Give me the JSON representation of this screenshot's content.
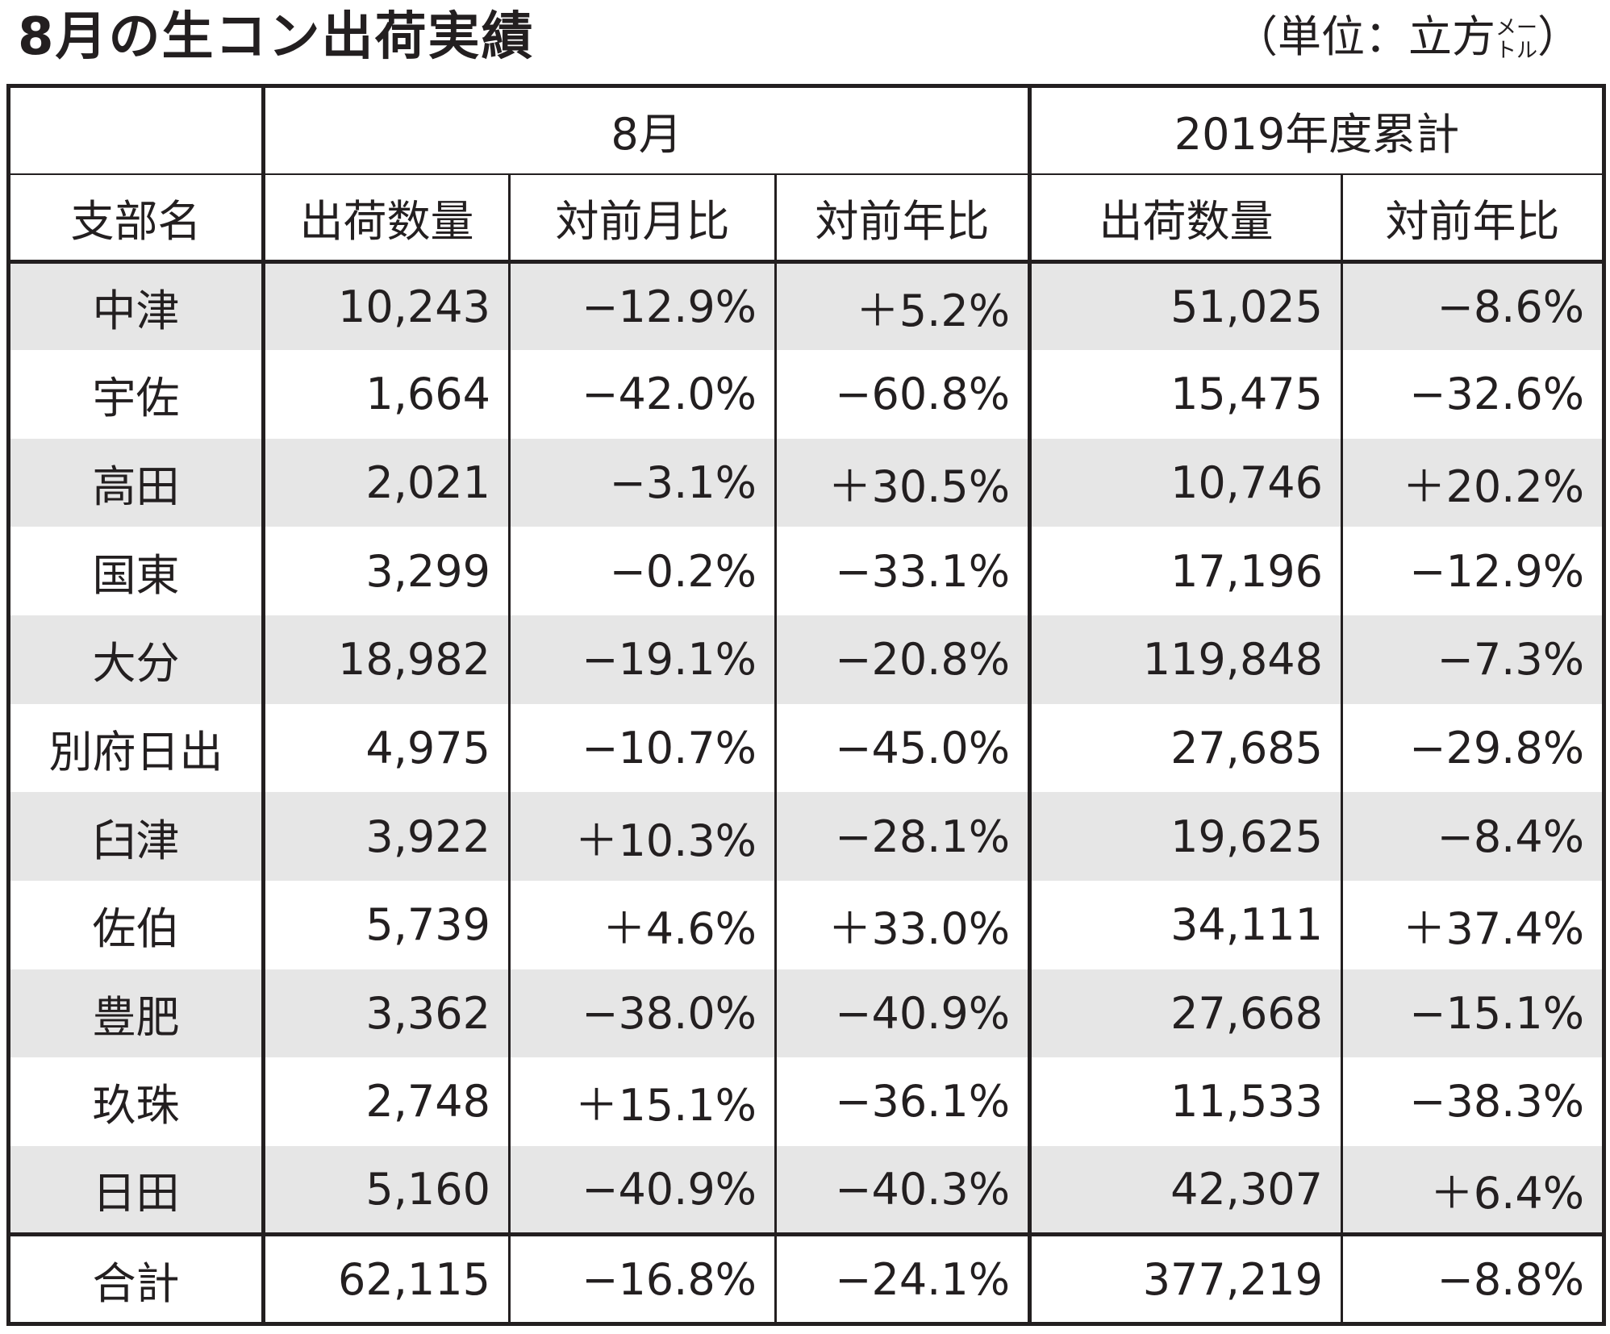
{
  "header": {
    "title": "8月の生コン出荷実績",
    "unit_prefix": "（単位：立方",
    "unit_small_top": "メー",
    "unit_small_bottom": "トル",
    "unit_suffix": "）"
  },
  "colors": {
    "text": "#231f20",
    "row_shade": "#e6e6e6",
    "background": "#ffffff"
  },
  "chart_data": {
    "type": "table",
    "title": "8月の生コン出荷実績",
    "unit": "（単位：立方メートル）",
    "group_headers": [
      "8月",
      "2019年度累計"
    ],
    "columns": [
      "支部名",
      "出荷数量",
      "対前月比",
      "対前年比",
      "出荷数量",
      "対前年比"
    ],
    "rows": [
      [
        "中津",
        "10,243",
        "−12.9%",
        "＋5.2%",
        "51,025",
        "−8.6%"
      ],
      [
        "宇佐",
        "1,664",
        "−42.0%",
        "−60.8%",
        "15,475",
        "−32.6%"
      ],
      [
        "高田",
        "2,021",
        "−3.1%",
        "＋30.5%",
        "10,746",
        "＋20.2%"
      ],
      [
        "国東",
        "3,299",
        "−0.2%",
        "−33.1%",
        "17,196",
        "−12.9%"
      ],
      [
        "大分",
        "18,982",
        "−19.1%",
        "−20.8%",
        "119,848",
        "−7.3%"
      ],
      [
        "別府日出",
        "4,975",
        "−10.7%",
        "−45.0%",
        "27,685",
        "−29.8%"
      ],
      [
        "臼津",
        "3,922",
        "＋10.3%",
        "−28.1%",
        "19,625",
        "−8.4%"
      ],
      [
        "佐伯",
        "5,739",
        "＋4.6%",
        "＋33.0%",
        "34,111",
        "＋37.4%"
      ],
      [
        "豊肥",
        "3,362",
        "−38.0%",
        "−40.9%",
        "27,668",
        "−15.1%"
      ],
      [
        "玖珠",
        "2,748",
        "＋15.1%",
        "−36.1%",
        "11,533",
        "−38.3%"
      ],
      [
        "日田",
        "5,160",
        "−40.9%",
        "−40.3%",
        "42,307",
        "＋6.4%"
      ]
    ],
    "total": [
      "合計",
      "62,115",
      "−16.8%",
      "−24.1%",
      "377,219",
      "−8.8%"
    ]
  }
}
